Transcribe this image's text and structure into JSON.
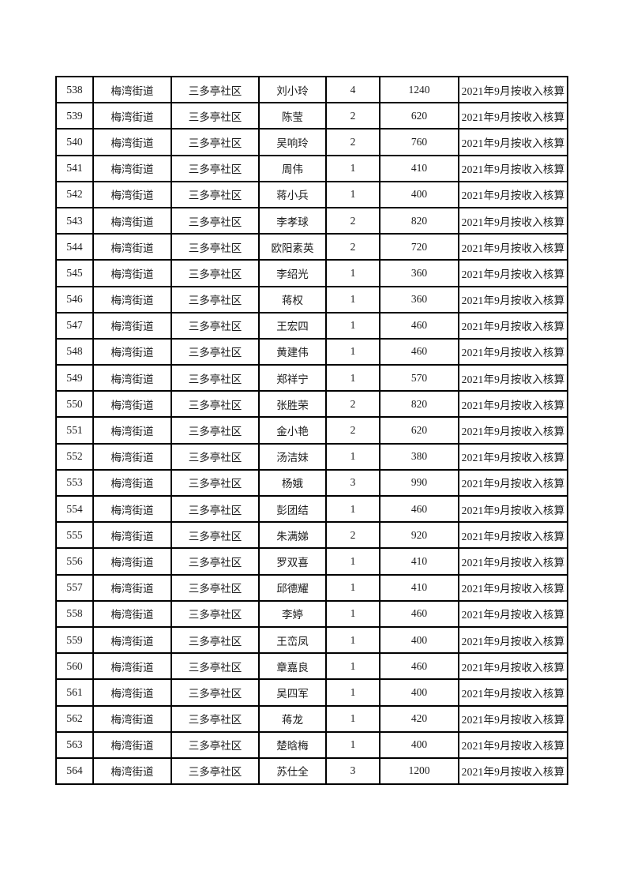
{
  "colors": {
    "page_background": "#ffffff",
    "table_border": "#000000",
    "text": "#1c1c1c"
  },
  "table": {
    "rows": [
      [
        "538",
        "梅湾街道",
        "三多亭社区",
        "刘小玲",
        "4",
        "1240",
        "2021年9月按收入核算"
      ],
      [
        "539",
        "梅湾街道",
        "三多亭社区",
        "陈莹",
        "2",
        "620",
        "2021年9月按收入核算"
      ],
      [
        "540",
        "梅湾街道",
        "三多亭社区",
        "吴响玲",
        "2",
        "760",
        "2021年9月按收入核算"
      ],
      [
        "541",
        "梅湾街道",
        "三多亭社区",
        "周伟",
        "1",
        "410",
        "2021年9月按收入核算"
      ],
      [
        "542",
        "梅湾街道",
        "三多亭社区",
        "蒋小兵",
        "1",
        "400",
        "2021年9月按收入核算"
      ],
      [
        "543",
        "梅湾街道",
        "三多亭社区",
        "李孝球",
        "2",
        "820",
        "2021年9月按收入核算"
      ],
      [
        "544",
        "梅湾街道",
        "三多亭社区",
        "欧阳素英",
        "2",
        "720",
        "2021年9月按收入核算"
      ],
      [
        "545",
        "梅湾街道",
        "三多亭社区",
        "李绍光",
        "1",
        "360",
        "2021年9月按收入核算"
      ],
      [
        "546",
        "梅湾街道",
        "三多亭社区",
        "蒋权",
        "1",
        "360",
        "2021年9月按收入核算"
      ],
      [
        "547",
        "梅湾街道",
        "三多亭社区",
        "王宏四",
        "1",
        "460",
        "2021年9月按收入核算"
      ],
      [
        "548",
        "梅湾街道",
        "三多亭社区",
        "黄建伟",
        "1",
        "460",
        "2021年9月按收入核算"
      ],
      [
        "549",
        "梅湾街道",
        "三多亭社区",
        "郑祥宁",
        "1",
        "570",
        "2021年9月按收入核算"
      ],
      [
        "550",
        "梅湾街道",
        "三多亭社区",
        "张胜荣",
        "2",
        "820",
        "2021年9月按收入核算"
      ],
      [
        "551",
        "梅湾街道",
        "三多亭社区",
        "金小艳",
        "2",
        "620",
        "2021年9月按收入核算"
      ],
      [
        "552",
        "梅湾街道",
        "三多亭社区",
        "汤洁妹",
        "1",
        "380",
        "2021年9月按收入核算"
      ],
      [
        "553",
        "梅湾街道",
        "三多亭社区",
        "杨娥",
        "3",
        "990",
        "2021年9月按收入核算"
      ],
      [
        "554",
        "梅湾街道",
        "三多亭社区",
        "彭团结",
        "1",
        "460",
        "2021年9月按收入核算"
      ],
      [
        "555",
        "梅湾街道",
        "三多亭社区",
        "朱满娣",
        "2",
        "920",
        "2021年9月按收入核算"
      ],
      [
        "556",
        "梅湾街道",
        "三多亭社区",
        "罗双喜",
        "1",
        "410",
        "2021年9月按收入核算"
      ],
      [
        "557",
        "梅湾街道",
        "三多亭社区",
        "邱德耀",
        "1",
        "410",
        "2021年9月按收入核算"
      ],
      [
        "558",
        "梅湾街道",
        "三多亭社区",
        "李婷",
        "1",
        "460",
        "2021年9月按收入核算"
      ],
      [
        "559",
        "梅湾街道",
        "三多亭社区",
        "王峦凤",
        "1",
        "400",
        "2021年9月按收入核算"
      ],
      [
        "560",
        "梅湾街道",
        "三多亭社区",
        "章嘉良",
        "1",
        "460",
        "2021年9月按收入核算"
      ],
      [
        "561",
        "梅湾街道",
        "三多亭社区",
        "吴四军",
        "1",
        "400",
        "2021年9月按收入核算"
      ],
      [
        "562",
        "梅湾街道",
        "三多亭社区",
        "蒋龙",
        "1",
        "420",
        "2021年9月按收入核算"
      ],
      [
        "563",
        "梅湾街道",
        "三多亭社区",
        "楚晗梅",
        "1",
        "400",
        "2021年9月按收入核算"
      ],
      [
        "564",
        "梅湾街道",
        "三多亭社区",
        "苏仕全",
        "3",
        "1200",
        "2021年9月按收入核算"
      ]
    ]
  }
}
